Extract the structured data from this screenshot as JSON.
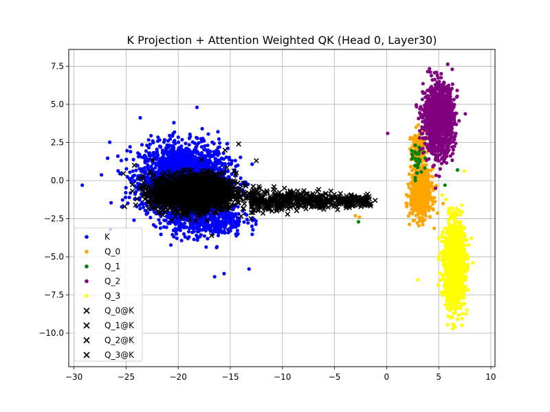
{
  "chart_data": {
    "type": "scatter",
    "title": "K Projection + Attention Weighted QK (Head 0, Layer30)",
    "xlabel": "",
    "ylabel": "",
    "xlim": [
      -30.5,
      10.4
    ],
    "ylim": [
      -12.2,
      8.6
    ],
    "xticks": [
      -30,
      -25,
      -20,
      -15,
      -10,
      -5,
      0,
      5,
      10
    ],
    "yticks": [
      -10.0,
      -7.5,
      -5.0,
      -2.5,
      0.0,
      2.5,
      5.0,
      7.5
    ],
    "ytick_labels": [
      "−10.0",
      "−7.5",
      "−5.0",
      "−2.5",
      "0.0",
      "2.5",
      "5.0",
      "7.5"
    ],
    "xtick_labels": [
      "−30",
      "−25",
      "−20",
      "−15",
      "−10",
      "−5",
      "0",
      "5",
      "10"
    ],
    "grid": true,
    "legend_position": "lower-left",
    "series": [
      {
        "name": "K",
        "marker": "dot",
        "color": "#0000ff",
        "clusters": [
          {
            "center": [
              -19.5,
              0.2
            ],
            "spread": [
              3.8,
              2.0
            ],
            "count": 2200
          },
          {
            "center": [
              -17.5,
              -2.5
            ],
            "spread": [
              3.5,
              1.1
            ],
            "count": 500
          }
        ],
        "outliers": [
          [
            -18.2,
            4.8
          ],
          [
            -29.2,
            -0.3
          ],
          [
            -16.5,
            -6.3
          ],
          [
            -13.2,
            -5.8
          ],
          [
            -26.5,
            -3.2
          ],
          [
            -15.6,
            -6.1
          ]
        ]
      },
      {
        "name": "Q_0",
        "marker": "dot",
        "color": "#ffa500",
        "clusters": [
          {
            "center": [
              3.3,
              -0.8
            ],
            "spread": [
              0.9,
              1.4
            ],
            "count": 700
          },
          {
            "center": [
              3.0,
              2.0
            ],
            "spread": [
              0.6,
              1.1
            ],
            "count": 150
          }
        ],
        "outliers": [
          [
            -3.0,
            -2.3
          ],
          [
            -2.6,
            -2.4
          ]
        ]
      },
      {
        "name": "Q_1",
        "marker": "dot",
        "color": "#008000",
        "clusters": [
          {
            "center": [
              3.0,
              1.2
            ],
            "spread": [
              0.5,
              1.0
            ],
            "count": 30
          }
        ],
        "outliers": [
          [
            -2.7,
            -2.7
          ],
          [
            6.8,
            0.7
          ],
          [
            5.6,
            -0.3
          ]
        ]
      },
      {
        "name": "Q_2",
        "marker": "dot",
        "color": "#800080",
        "clusters": [
          {
            "center": [
              5.0,
              4.0
            ],
            "spread": [
              1.3,
              2.0
            ],
            "count": 1300
          }
        ],
        "outliers": [
          [
            0.1,
            3.1
          ],
          [
            6.3,
            7.3
          ],
          [
            4.7,
            -0.5
          ]
        ]
      },
      {
        "name": "Q_3",
        "marker": "dot",
        "color": "#ffff00",
        "clusters": [
          {
            "center": [
              6.5,
              -5.5
            ],
            "spread": [
              0.9,
              2.6
            ],
            "count": 1200
          }
        ],
        "outliers": [
          [
            3.0,
            -6.5
          ]
        ]
      },
      {
        "name": "Q_0@K",
        "marker": "x",
        "color": "#000000",
        "shape": "comet",
        "head": {
          "center": [
            -18.5,
            -0.8
          ],
          "spread": [
            4.0,
            1.2
          ],
          "count": 1800
        },
        "tail": {
          "from": [
            -13.0,
            -1.3
          ],
          "to": [
            -1.5,
            -1.3
          ],
          "width": 0.35,
          "count": 500
        }
      },
      {
        "name": "Q_1@K",
        "marker": "x",
        "color": "#000000",
        "points": [
          [
            -24.2,
            1.0
          ],
          [
            -16.8,
            -3.6
          ],
          [
            -12.5,
            1.3
          ],
          [
            -9.5,
            -2.2
          ],
          [
            -1.1,
            -1.3
          ],
          [
            -10.8,
            -0.4
          ]
        ]
      },
      {
        "name": "Q_2@K",
        "marker": "x",
        "color": "#000000",
        "points": [
          [
            -15.5,
            2.0
          ],
          [
            -14.2,
            2.4
          ],
          [
            -8.0,
            -0.8
          ],
          [
            -9.8,
            -0.5
          ]
        ]
      },
      {
        "name": "Q_3@K",
        "marker": "x",
        "color": "#000000",
        "points": [
          [
            -19.0,
            -2.3
          ],
          [
            -13.0,
            -2.5
          ],
          [
            -11.0,
            -2.0
          ],
          [
            -10.0,
            -1.8
          ]
        ]
      }
    ]
  }
}
